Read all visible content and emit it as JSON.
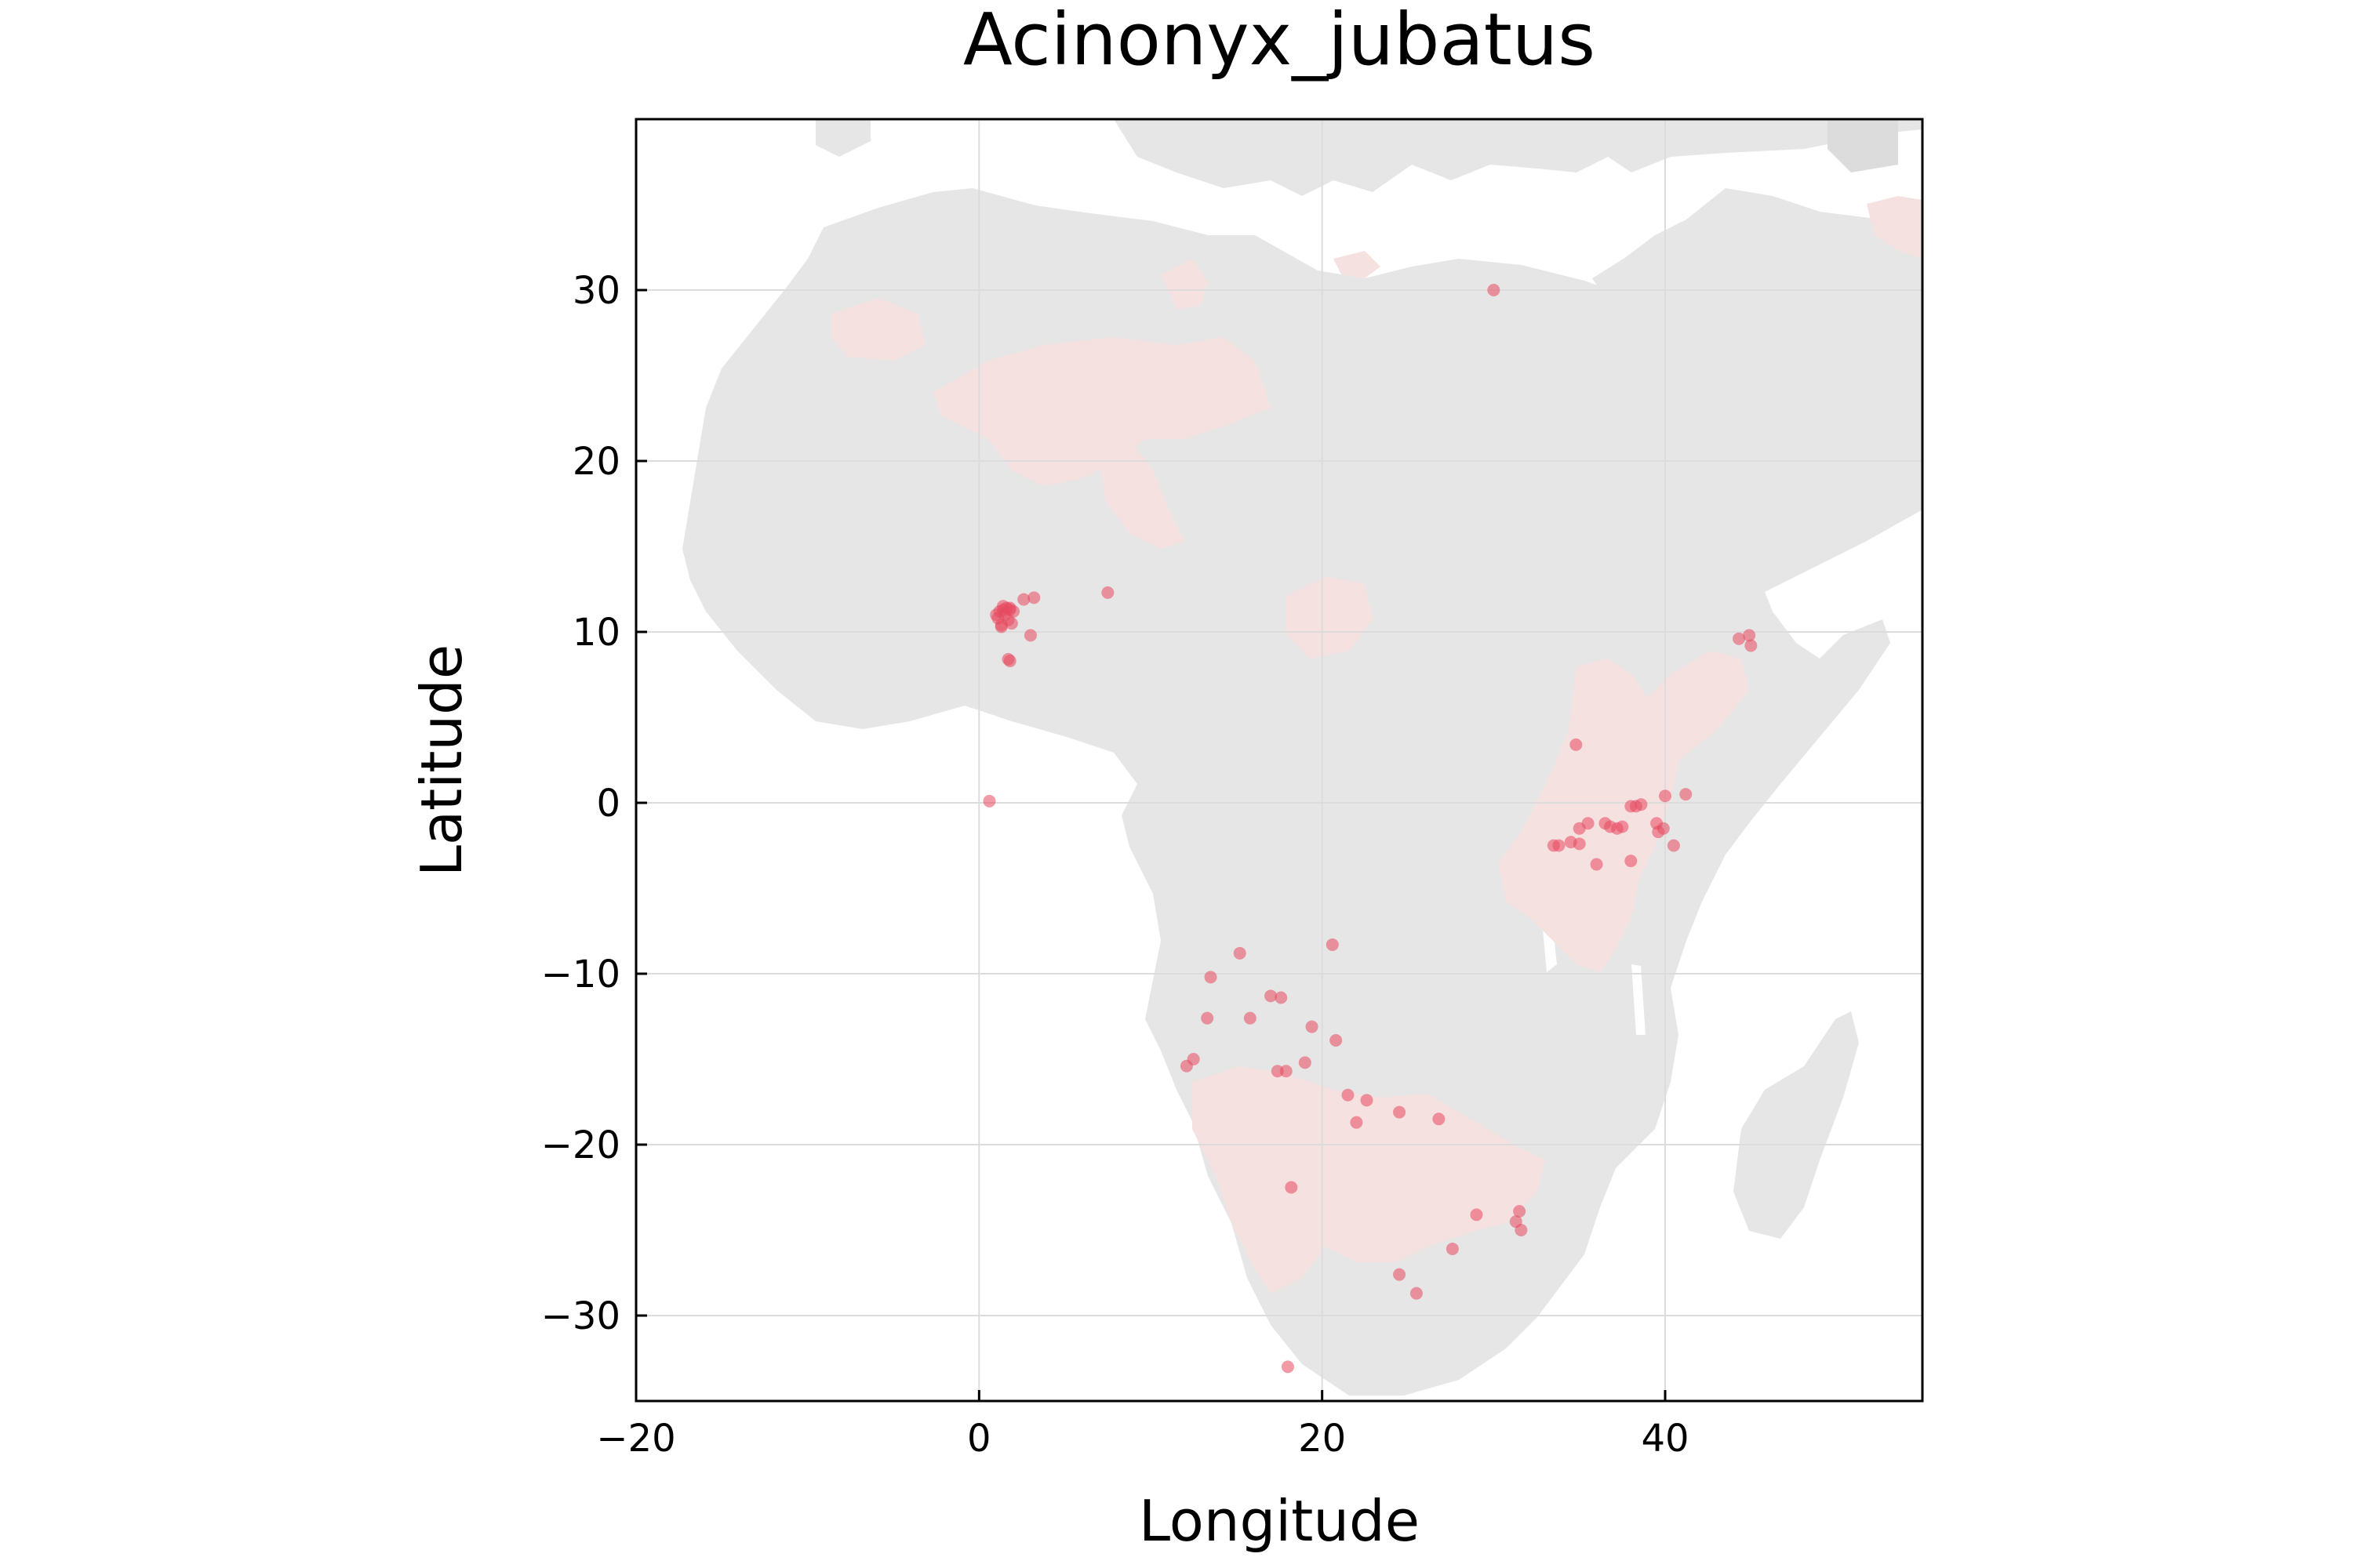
{
  "title": "Acinonyx_jubatus",
  "colors": {
    "land": "#e6e6e6",
    "range": "#f6e1e1",
    "point": "#e8485f",
    "grid": "#dcdcdc",
    "frame": "#000000"
  },
  "chart_data": {
    "type": "scatter",
    "title": "Acinonyx_jubatus",
    "xlabel": "Longitude",
    "ylabel": "Latitude",
    "xlim": [
      -20,
      55
    ],
    "ylim": [
      -35,
      40
    ],
    "xticks": [
      -20,
      0,
      20,
      40
    ],
    "yticks": [
      30,
      20,
      10,
      0,
      -10,
      -20,
      -30
    ],
    "xtick_labels": [
      "−20",
      "0",
      "20",
      "40"
    ],
    "ytick_labels": [
      "30",
      "20",
      "10",
      "0",
      "−10",
      "−20",
      "−30"
    ],
    "grid": true,
    "legend": "none",
    "series": [
      {
        "x": [
          30.0,
          1.0,
          1.2,
          1.4,
          1.6,
          1.8,
          2.0,
          1.1,
          1.5,
          1.3,
          1.7,
          1.9,
          1.4,
          1.8,
          2.6,
          3.2,
          1.3,
          3.0,
          1.7,
          1.8,
          7.5,
          0.6,
          44.9,
          45.0,
          44.3,
          34.8,
          37.5,
          38.0,
          36.5,
          36.8,
          37.2,
          36.0,
          35.0,
          34.5,
          33.8,
          33.5,
          35.5,
          38.0,
          38.3,
          38.6,
          39.5,
          40.0,
          40.5,
          41.2,
          39.6,
          39.9,
          35.0,
          20.6,
          15.2,
          13.5,
          17.0,
          17.6,
          13.3,
          15.8,
          19.4,
          20.8,
          12.1,
          12.5,
          17.4,
          17.9,
          19.0,
          21.5,
          22.6,
          22.0,
          24.5,
          26.8,
          18.2,
          29.0,
          31.5,
          31.3,
          31.6,
          27.6,
          24.5,
          25.5,
          18.0
        ],
        "y": [
          30.0,
          11.0,
          11.2,
          11.3,
          11.4,
          11.3,
          11.2,
          10.8,
          11.0,
          10.3,
          10.7,
          10.5,
          11.5,
          11.4,
          11.9,
          12.0,
          10.4,
          9.8,
          8.4,
          8.3,
          12.3,
          0.1,
          9.8,
          9.2,
          9.6,
          3.4,
          -1.4,
          -0.2,
          -1.2,
          -1.4,
          -1.5,
          -3.6,
          -2.4,
          -2.3,
          -2.5,
          -2.5,
          -1.2,
          -3.4,
          -0.2,
          -0.1,
          -1.2,
          0.4,
          -2.5,
          0.5,
          -1.7,
          -1.5,
          -1.5,
          -8.3,
          -8.8,
          -10.2,
          -11.3,
          -11.4,
          -12.6,
          -12.6,
          -13.1,
          -13.9,
          -15.4,
          -15.0,
          -15.7,
          -15.7,
          -15.2,
          -17.1,
          -17.4,
          -18.7,
          -18.1,
          -18.5,
          -22.5,
          -24.1,
          -23.9,
          -24.5,
          -25.0,
          -26.1,
          -27.6,
          -28.7,
          -33.0
        ]
      }
    ]
  }
}
